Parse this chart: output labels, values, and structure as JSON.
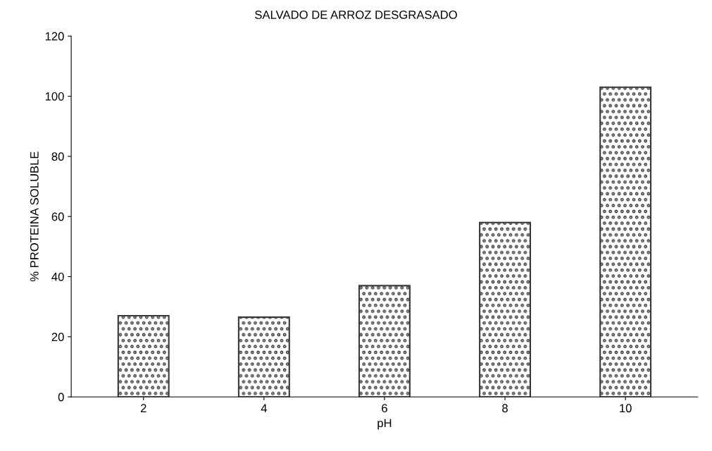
{
  "chart_data": {
    "type": "bar",
    "title": "SALVADO DE ARROZ DESGRASADO",
    "xlabel": "pH",
    "ylabel": "% PROTEINA SOLUBLE",
    "categories": [
      "2",
      "4",
      "6",
      "8",
      "10"
    ],
    "values": [
      27,
      26.5,
      37,
      58,
      103
    ],
    "color": "#3a3a3a",
    "ylim": [
      0,
      120
    ],
    "yticks": [
      0,
      20,
      40,
      60,
      80,
      100,
      120
    ],
    "grid": false
  }
}
